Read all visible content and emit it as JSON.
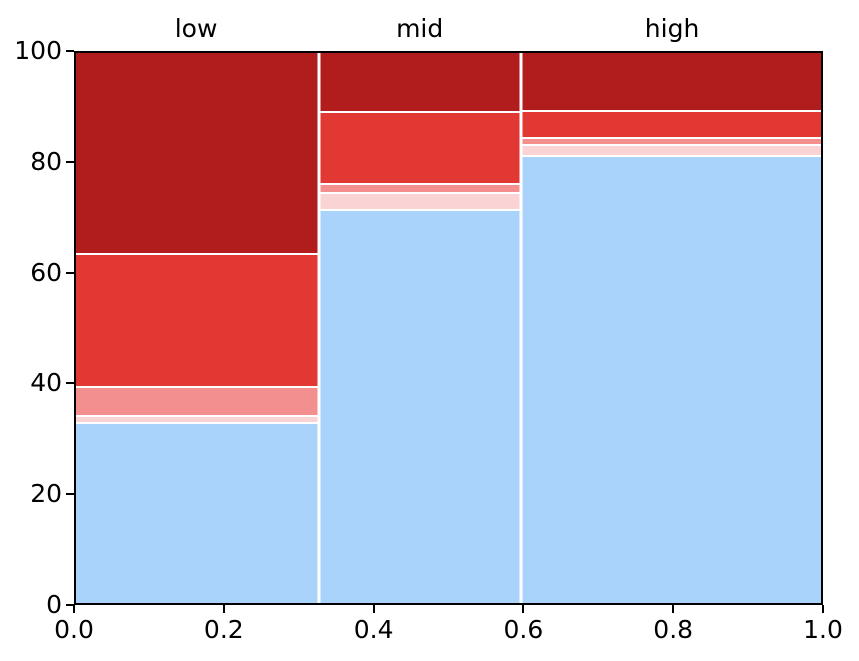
{
  "chart_data": {
    "type": "bar",
    "subtype": "mosaic-proportional-stacked",
    "title": "",
    "xlabel": "",
    "ylabel": "",
    "categories": [
      "low",
      "mid",
      "high"
    ],
    "column_labels": [
      "low",
      "mid",
      "high"
    ],
    "column_x_ranges": [
      [
        0.0,
        0.326
      ],
      [
        0.326,
        0.597
      ],
      [
        0.597,
        1.0
      ]
    ],
    "stack_order": "bottom-to-top",
    "series": [
      {
        "name": "lightblue",
        "color": "#a9d3fb",
        "values": [
          32.7,
          71.5,
          81.2
        ]
      },
      {
        "name": "pink",
        "color": "#fad4d4",
        "values": [
          1.3,
          3.0,
          2.0
        ]
      },
      {
        "name": "salmon",
        "color": "#f3908f",
        "values": [
          5.2,
          1.7,
          1.3
        ]
      },
      {
        "name": "red",
        "color": "#e23834",
        "values": [
          24.3,
          13.1,
          4.9
        ]
      },
      {
        "name": "darkred",
        "color": "#b11c1c",
        "values": [
          36.5,
          10.7,
          10.6
        ]
      }
    ],
    "xlim": [
      0.0,
      1.0
    ],
    "ylim": [
      0,
      100
    ],
    "xticks": [
      0.0,
      0.2,
      0.4,
      0.6,
      0.8,
      1.0
    ],
    "xtick_labels": [
      "0.0",
      "0.2",
      "0.4",
      "0.6",
      "0.8",
      "1.0"
    ],
    "yticks": [
      0,
      20,
      40,
      60,
      80,
      100
    ],
    "ytick_labels": [
      "0",
      "20",
      "40",
      "60",
      "80",
      "100"
    ],
    "grid": false,
    "legend": false,
    "separator_color": "#ffffff",
    "axis_color": "#000000",
    "text_color": "#000000",
    "background": "#ffffff"
  }
}
